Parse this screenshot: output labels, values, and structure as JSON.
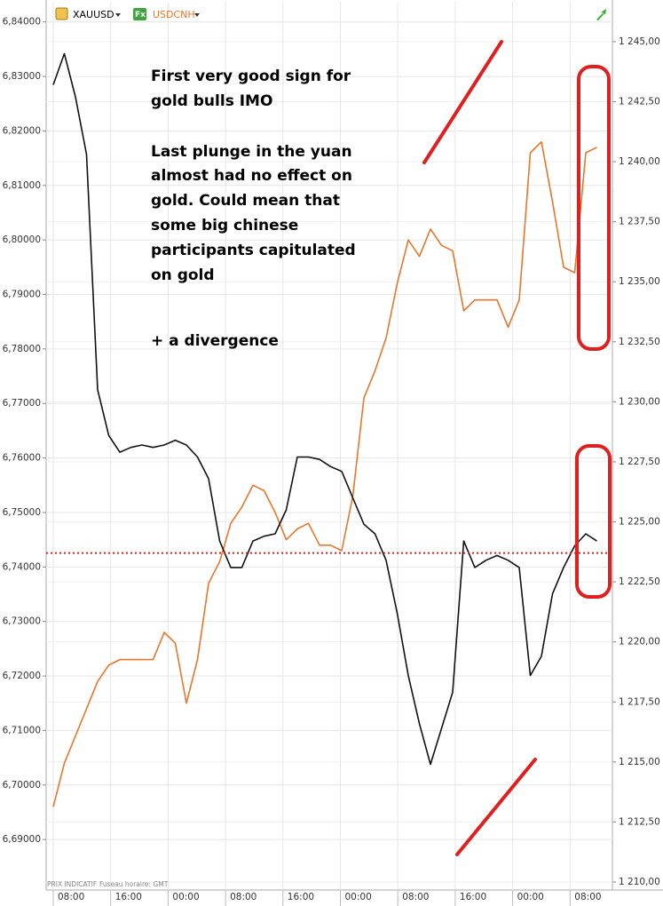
{
  "chart_data": {
    "type": "line",
    "series": [
      {
        "name": "USDCNH",
        "color": "#e8762c",
        "axis": "y",
        "values": [
          6.696,
          6.704,
          6.709,
          6.714,
          6.719,
          6.722,
          6.723,
          6.723,
          6.723,
          6.723,
          6.728,
          6.726,
          6.715,
          6.723,
          6.737,
          6.741,
          6.748,
          6.751,
          6.755,
          6.754,
          6.75,
          6.745,
          6.747,
          6.748,
          6.744,
          6.744,
          6.743,
          6.753,
          6.771,
          6.776,
          6.782,
          6.792,
          6.8,
          6.797,
          6.802,
          6.799,
          6.798,
          6.787,
          6.789,
          6.789,
          6.789,
          6.784,
          6.789,
          6.816,
          6.818,
          6.807,
          6.795,
          6.794,
          6.816,
          6.817
        ]
      },
      {
        "name": "XAUUSD",
        "color": "#111111",
        "axis": "y2",
        "values": [
          1243.2,
          1244.5,
          1242.7,
          1240.3,
          1230.5,
          1228.6,
          1227.9,
          1228.1,
          1228.2,
          1228.1,
          1228.2,
          1228.4,
          1228.2,
          1227.7,
          1226.8,
          1224.2,
          1223.1,
          1223.1,
          1224.2,
          1224.4,
          1224.5,
          1225.5,
          1227.7,
          1227.7,
          1227.6,
          1227.3,
          1227.1,
          1226.0,
          1224.9,
          1224.5,
          1223.4,
          1221.2,
          1218.6,
          1216.6,
          1214.9,
          1216.4,
          1217.9,
          1224.2,
          1223.1,
          1223.4,
          1223.6,
          1223.4,
          1223.1,
          1218.6,
          1219.4,
          1222.0,
          1223.1,
          1224.0,
          1224.5,
          1224.2
        ]
      }
    ],
    "ylim": [
      6.6822,
      6.8437
    ],
    "yticks": [
      {
        "value": 6.69,
        "label": "6,69000"
      },
      {
        "value": 6.7,
        "label": "6,70000"
      },
      {
        "value": 6.71,
        "label": "6,71000"
      },
      {
        "value": 6.72,
        "label": "6,72000"
      },
      {
        "value": 6.73,
        "label": "6,73000"
      },
      {
        "value": 6.74,
        "label": "6,74000"
      },
      {
        "value": 6.75,
        "label": "6,75000"
      },
      {
        "value": 6.76,
        "label": "6,76000"
      },
      {
        "value": 6.77,
        "label": "6,77000"
      },
      {
        "value": 6.78,
        "label": "6,78000"
      },
      {
        "value": 6.79,
        "label": "6,79000"
      },
      {
        "value": 6.8,
        "label": "6,80000"
      },
      {
        "value": 6.81,
        "label": "6,81000"
      },
      {
        "value": 6.82,
        "label": "6,82000"
      },
      {
        "value": 6.83,
        "label": "6,83000"
      },
      {
        "value": 6.84,
        "label": "6,84000"
      }
    ],
    "y2lim": [
      1210,
      1246.66
    ],
    "y2ticks": [
      {
        "value": 1210,
        "label": "1 210,00"
      },
      {
        "value": 1212.5,
        "label": "1 212,50"
      },
      {
        "value": 1215,
        "label": "1 215,00"
      },
      {
        "value": 1217.5,
        "label": "1 217,50"
      },
      {
        "value": 1220,
        "label": "1 220,00"
      },
      {
        "value": 1222.5,
        "label": "1 222,50"
      },
      {
        "value": 1225,
        "label": "1 225,00"
      },
      {
        "value": 1227.5,
        "label": "1 227,50"
      },
      {
        "value": 1230,
        "label": "1 230,00"
      },
      {
        "value": 1232.5,
        "label": "1 232,50"
      },
      {
        "value": 1235,
        "label": "1 235,00"
      },
      {
        "value": 1237.5,
        "label": "1 237,50"
      },
      {
        "value": 1240,
        "label": "1 240,00"
      },
      {
        "value": 1242.5,
        "label": "1 242,50"
      },
      {
        "value": 1245,
        "label": "1 245,00"
      }
    ],
    "x_tick_labels": [
      "08:00",
      "16:00",
      "00:00",
      "08:00",
      "16:00",
      "00:00",
      "08:00",
      "16:00",
      "00:00",
      "08:00"
    ],
    "reference_line": {
      "value": 1223.7,
      "axis": "y2",
      "color": "#e02020"
    },
    "grid": true,
    "annotations": [
      "First very good sign for",
      "gold bulls IMO",
      "Last plunge in the yuan",
      "almost had no effect on",
      "gold. Could mean that",
      "some big chinese",
      "participants capitulated",
      "on gold",
      "+ a divergence"
    ],
    "footer": [
      "PRIX INDICATIF",
      "Fuseau horaire: GMT"
    ],
    "icon_label": "Fx"
  }
}
